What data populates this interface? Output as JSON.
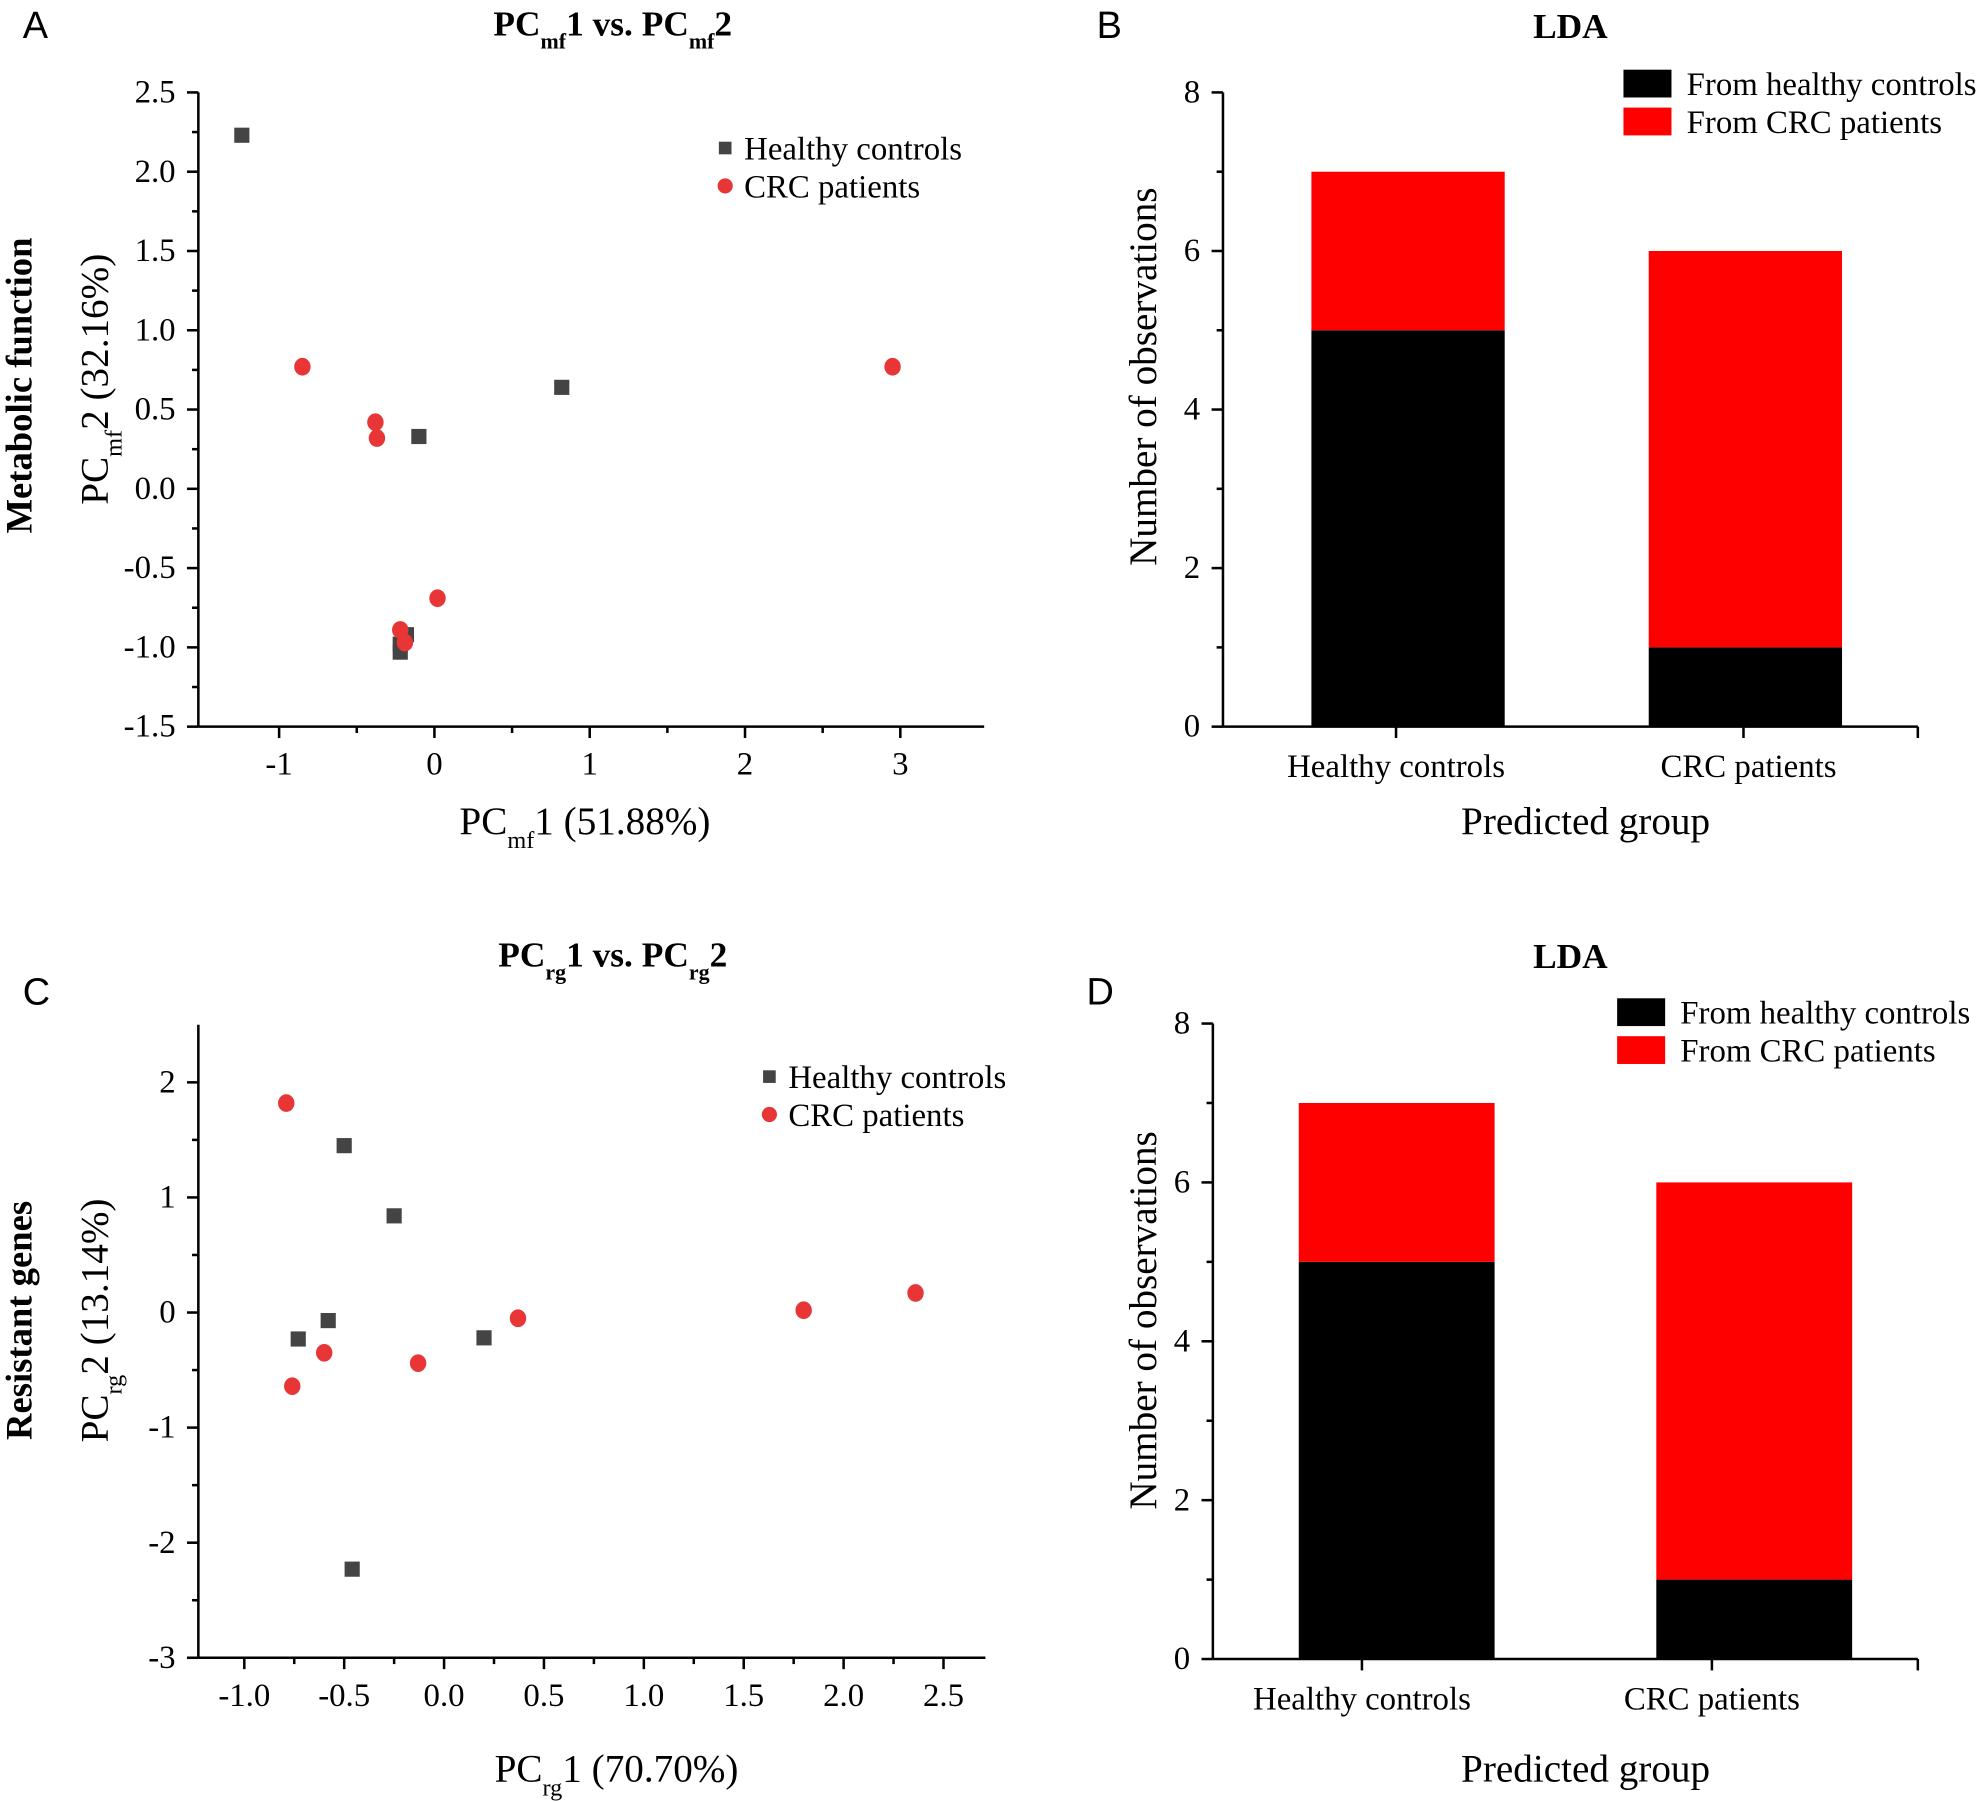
{
  "chart_data": [
    {
      "panel": "A",
      "type": "scatter",
      "title": "PCmf1 vs. PCmf2",
      "title_parts": [
        "PC",
        "mf",
        "1 vs. PC",
        "mf",
        "2"
      ],
      "xlabel_parts": [
        "PC",
        "mf",
        "1 (51.88%)"
      ],
      "ylabel_parts": [
        "PC",
        "mf",
        "2 (32.16%)"
      ],
      "side_label": "Metabolic function",
      "xlim": [
        -1.52,
        3.54
      ],
      "ylim": [
        -1.5,
        2.5
      ],
      "xticks": [
        -1,
        0,
        1,
        2,
        3
      ],
      "yticks": [
        -1.5,
        -1.0,
        -0.5,
        0.0,
        0.5,
        1.0,
        1.5,
        2.0,
        2.5
      ],
      "ytick_labels": [
        "-1.5",
        "-1.0",
        "-0.5",
        "0.0",
        "0.5",
        "1.0",
        "1.5",
        "2.0",
        "2.5"
      ],
      "legend": "top-right",
      "series": [
        {
          "name": "Healthy controls",
          "marker": "square",
          "color": "#444444",
          "points": [
            [
              -1.24,
              2.23
            ],
            [
              0.82,
              0.64
            ],
            [
              -0.1,
              0.33
            ],
            [
              -0.18,
              -0.92
            ],
            [
              -0.22,
              -1.03
            ],
            [
              -0.22,
              -0.98
            ]
          ]
        },
        {
          "name": "CRC patients",
          "marker": "circle",
          "color": "#e83535",
          "points": [
            [
              -0.85,
              0.77
            ],
            [
              2.95,
              0.77
            ],
            [
              -0.38,
              0.42
            ],
            [
              -0.37,
              0.32
            ],
            [
              0.02,
              -0.69
            ],
            [
              -0.22,
              -0.89
            ],
            [
              -0.19,
              -0.97
            ]
          ]
        }
      ]
    },
    {
      "panel": "B",
      "type": "bar",
      "stacked": true,
      "title": "LDA",
      "xlabel": "Predicted group",
      "ylabel": "Number of observations",
      "ylim": [
        0,
        8
      ],
      "yticks": [
        0,
        2,
        4,
        6,
        8
      ],
      "categories": [
        "Healthy controls",
        "CRC patients"
      ],
      "legend": "top-right",
      "series": [
        {
          "name": "From healthy controls",
          "color": "#000000",
          "values": [
            5,
            1
          ]
        },
        {
          "name": "From CRC patients",
          "color": "#ff0000",
          "values": [
            2,
            5
          ]
        }
      ]
    },
    {
      "panel": "C",
      "type": "scatter",
      "title": "PCrg1 vs. PCrg2",
      "title_parts": [
        "PC",
        "rg",
        "1 vs. PC",
        "rg",
        "2"
      ],
      "xlabel_parts": [
        "PC",
        "rg",
        "1 (70.70%)"
      ],
      "ylabel_parts": [
        "PC",
        "rg",
        "2 (13.14%)"
      ],
      "side_label": "Resistant genes",
      "xlim": [
        -1.23,
        2.71
      ],
      "ylim": [
        -3,
        2.5
      ],
      "xticks": [
        -1.0,
        -0.5,
        0.0,
        0.5,
        1.0,
        1.5,
        2.0,
        2.5
      ],
      "xtick_labels": [
        "-1.0",
        "-0.5",
        "0.0",
        "0.5",
        "1.0",
        "1.5",
        "2.0",
        "2.5"
      ],
      "yticks": [
        -3,
        -2,
        -1,
        0,
        1,
        2
      ],
      "legend": "top-right",
      "series": [
        {
          "name": "Healthy controls",
          "marker": "square",
          "color": "#444444",
          "points": [
            [
              -0.5,
              1.45
            ],
            [
              -0.25,
              0.84
            ],
            [
              -0.73,
              -0.23
            ],
            [
              -0.58,
              -0.07
            ],
            [
              0.2,
              -0.22
            ],
            [
              -0.46,
              -2.23
            ]
          ]
        },
        {
          "name": "CRC patients",
          "marker": "circle",
          "color": "#e83535",
          "points": [
            [
              -0.79,
              1.82
            ],
            [
              1.8,
              0.02
            ],
            [
              2.36,
              0.17
            ],
            [
              0.37,
              -0.05
            ],
            [
              -0.6,
              -0.35
            ],
            [
              -0.13,
              -0.44
            ],
            [
              -0.76,
              -0.64
            ]
          ]
        }
      ]
    },
    {
      "panel": "D",
      "type": "bar",
      "stacked": true,
      "title": "LDA",
      "xlabel": "Predicted group",
      "ylabel": "Number of observations",
      "ylim": [
        0,
        8
      ],
      "yticks": [
        0,
        2,
        4,
        6,
        8
      ],
      "categories": [
        "Healthy controls",
        "CRC patients"
      ],
      "legend": "top-right",
      "series": [
        {
          "name": "From healthy controls",
          "color": "#000000",
          "values": [
            5,
            1
          ]
        },
        {
          "name": "From CRC patients",
          "color": "#ff0000",
          "values": [
            2,
            5
          ]
        }
      ]
    }
  ]
}
